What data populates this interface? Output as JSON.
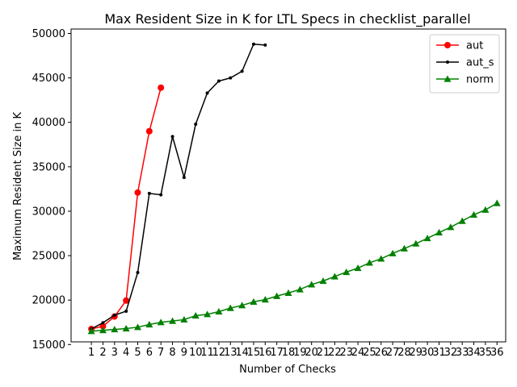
{
  "chart_data": {
    "type": "line",
    "title": "Max Resident Size in K for LTL Specs in checklist_parallel",
    "xlabel": "Number of Checks",
    "ylabel": "Maximum Resident Size in K",
    "x_ticks": [
      1,
      2,
      3,
      4,
      5,
      6,
      7,
      8,
      9,
      10,
      11,
      12,
      13,
      14,
      15,
      16,
      17,
      18,
      19,
      20,
      21,
      22,
      23,
      24,
      25,
      26,
      27,
      28,
      29,
      30,
      31,
      32,
      33,
      34,
      35,
      36
    ],
    "y_ticks": [
      15000,
      20000,
      25000,
      30000,
      35000,
      40000,
      45000,
      50000
    ],
    "xlim": [
      -0.75,
      36.75
    ],
    "ylim": [
      15300,
      50500
    ],
    "grid": false,
    "legend_position": "top-right",
    "series": [
      {
        "name": "aut",
        "color": "#ff0000",
        "marker": "circle",
        "x": [
          1,
          2,
          3,
          4,
          5,
          6,
          7
        ],
        "values": [
          16750,
          17050,
          18150,
          19950,
          32100,
          39000,
          43900
        ]
      },
      {
        "name": "aut_s",
        "color": "#000000",
        "marker": "point",
        "x": [
          1,
          2,
          3,
          4,
          5,
          6,
          7,
          8,
          9,
          10,
          11,
          12,
          13,
          14,
          15,
          16
        ],
        "values": [
          16750,
          17450,
          18300,
          18750,
          23100,
          32000,
          31850,
          38400,
          33800,
          39800,
          43300,
          44650,
          45000,
          45750,
          48800,
          48700
        ]
      },
      {
        "name": "norm",
        "color": "#008000",
        "marker": "triangle",
        "x": [
          1,
          2,
          3,
          4,
          5,
          6,
          7,
          8,
          9,
          10,
          11,
          12,
          13,
          14,
          15,
          16,
          17,
          18,
          19,
          20,
          21,
          22,
          23,
          24,
          25,
          26,
          27,
          28,
          29,
          30,
          31,
          32,
          33,
          34,
          35,
          36
        ],
        "values": [
          16500,
          16600,
          16700,
          16800,
          16950,
          17250,
          17500,
          17650,
          17800,
          18250,
          18400,
          18700,
          19100,
          19400,
          19800,
          20050,
          20450,
          20800,
          21200,
          21750,
          22150,
          22650,
          23150,
          23600,
          24200,
          24650,
          25250,
          25800,
          26350,
          26950,
          27600,
          28200,
          28900,
          29600,
          30150,
          30900
        ]
      }
    ]
  }
}
